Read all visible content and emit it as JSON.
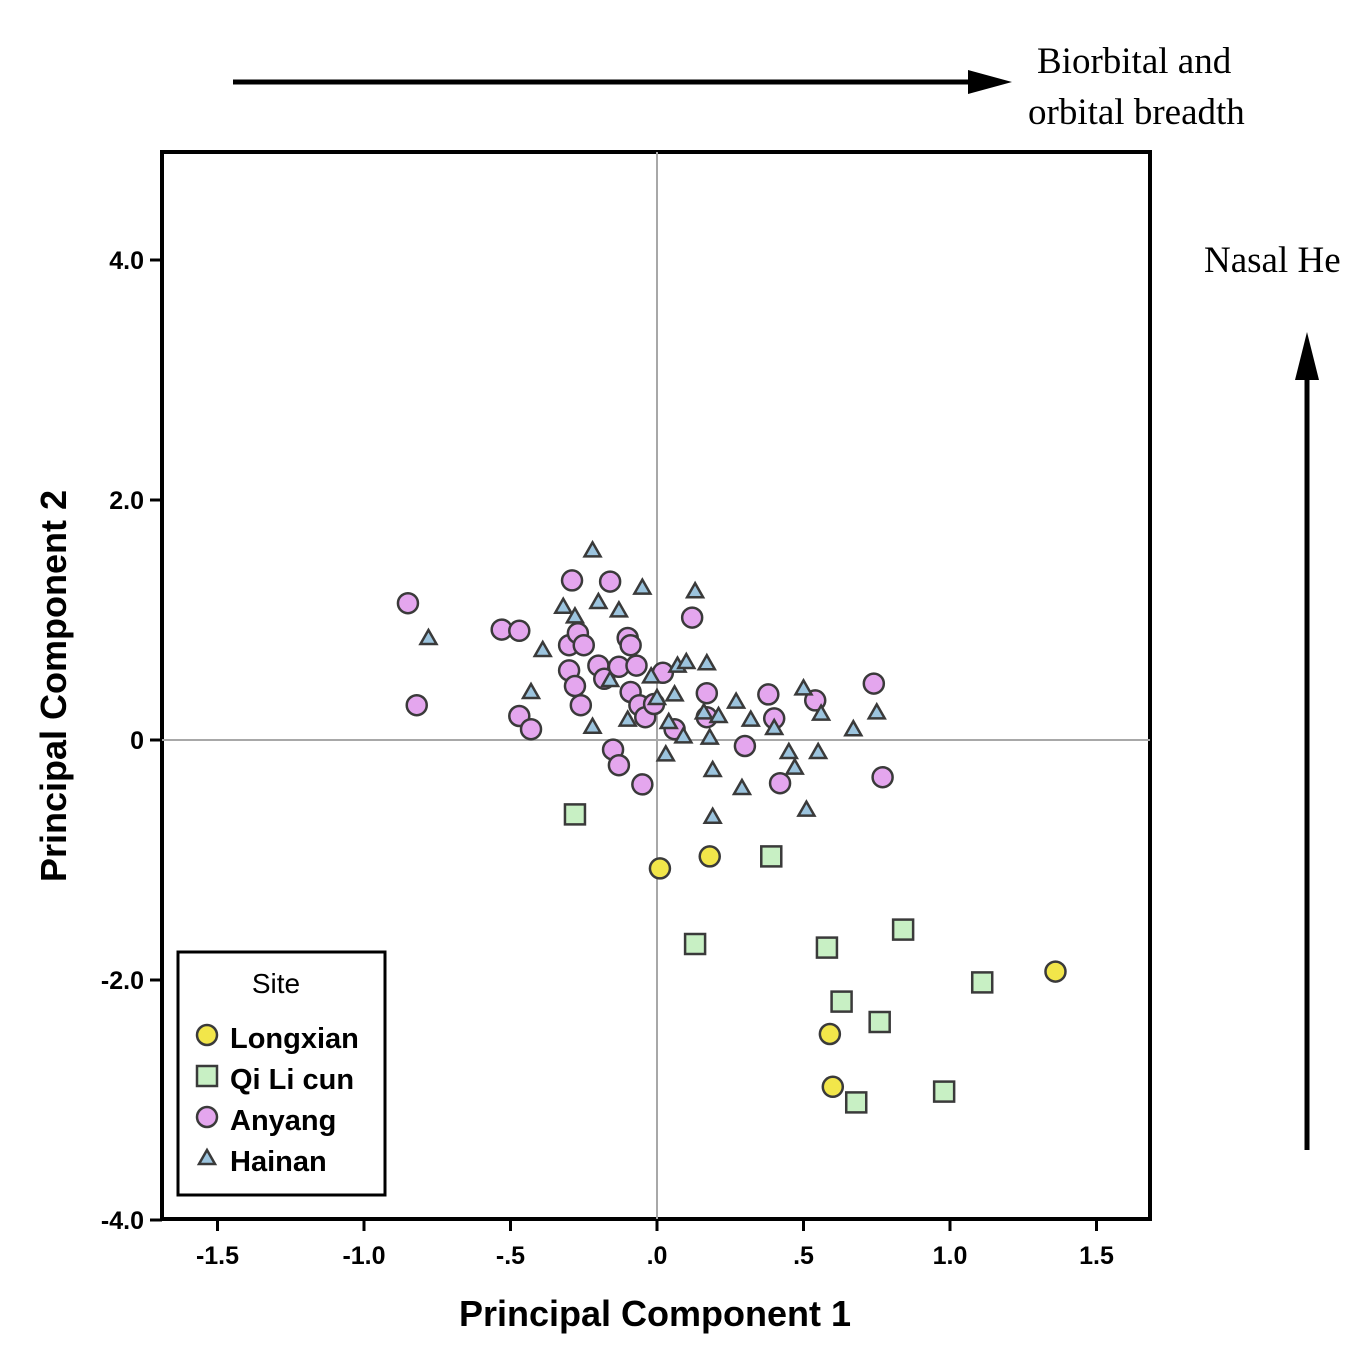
{
  "chart_data": {
    "type": "scatter",
    "xlabel": "Principal Component 1",
    "ylabel": "Principal Component 2",
    "xlim": [
      -1.68,
      1.68
    ],
    "ylim": [
      -4.0,
      4.9
    ],
    "x_ticks": [
      {
        "value": -1.5,
        "label": "-1.5"
      },
      {
        "value": -1.0,
        "label": "-1.0"
      },
      {
        "value": -0.5,
        "label": "-.5"
      },
      {
        "value": 0.0,
        "label": ".0"
      },
      {
        "value": 0.5,
        "label": ".5"
      },
      {
        "value": 1.0,
        "label": "1.0"
      },
      {
        "value": 1.5,
        "label": "1.5"
      }
    ],
    "y_ticks": [
      {
        "value": 4.0,
        "label": "4.0"
      },
      {
        "value": 2.0,
        "label": "2.0"
      },
      {
        "value": 0.0,
        "label": "0"
      },
      {
        "value": -2.0,
        "label": "-2.0"
      },
      {
        "value": -4.0,
        "label": "-4.0"
      }
    ],
    "reference_lines": {
      "x": 0,
      "y": 0
    },
    "annotations": {
      "top_text_line1": "Biorbital and",
      "top_text_line2": "orbital breadth",
      "right_text": "Nasal He"
    },
    "legend": {
      "title": "Site",
      "position": "bottom-left"
    },
    "series": [
      {
        "name": "Longxian",
        "marker": "circle",
        "color": "#f2e64a",
        "points": [
          [
            0.01,
            -1.07
          ],
          [
            0.18,
            -0.97
          ],
          [
            0.59,
            -2.45
          ],
          [
            0.6,
            -2.89
          ],
          [
            1.36,
            -1.93
          ]
        ]
      },
      {
        "name": "Qi Li cun",
        "marker": "square",
        "color": "#c8f0c4",
        "points": [
          [
            -0.28,
            -0.62
          ],
          [
            0.13,
            -1.7
          ],
          [
            0.39,
            -0.97
          ],
          [
            0.58,
            -1.73
          ],
          [
            0.63,
            -2.18
          ],
          [
            0.76,
            -2.35
          ],
          [
            0.84,
            -1.58
          ],
          [
            1.11,
            -2.02
          ],
          [
            0.68,
            -3.02
          ],
          [
            0.98,
            -2.93
          ]
        ]
      },
      {
        "name": "Anyang",
        "marker": "circle",
        "color": "#e4a6ee",
        "points": [
          [
            -0.85,
            1.14
          ],
          [
            -0.82,
            0.29
          ],
          [
            -0.53,
            0.92
          ],
          [
            -0.47,
            0.91
          ],
          [
            -0.47,
            0.2
          ],
          [
            -0.43,
            0.09
          ],
          [
            -0.29,
            1.33
          ],
          [
            -0.3,
            0.79
          ],
          [
            -0.3,
            0.58
          ],
          [
            -0.28,
            0.45
          ],
          [
            -0.27,
            0.89
          ],
          [
            -0.25,
            0.79
          ],
          [
            -0.26,
            0.29
          ],
          [
            -0.2,
            0.62
          ],
          [
            -0.18,
            0.51
          ],
          [
            -0.16,
            1.32
          ],
          [
            -0.15,
            -0.08
          ],
          [
            -0.13,
            -0.21
          ],
          [
            -0.13,
            0.61
          ],
          [
            -0.1,
            0.85
          ],
          [
            -0.09,
            0.79
          ],
          [
            -0.09,
            0.4
          ],
          [
            -0.07,
            0.62
          ],
          [
            -0.06,
            0.29
          ],
          [
            -0.05,
            -0.37
          ],
          [
            -0.04,
            0.19
          ],
          [
            -0.01,
            0.3
          ],
          [
            0.02,
            0.56
          ],
          [
            0.12,
            1.02
          ],
          [
            0.17,
            0.39
          ],
          [
            0.17,
            0.19
          ],
          [
            0.3,
            -0.05
          ],
          [
            0.38,
            0.38
          ],
          [
            0.4,
            0.18
          ],
          [
            0.42,
            -0.36
          ],
          [
            0.54,
            0.33
          ],
          [
            0.74,
            0.47
          ],
          [
            0.77,
            -0.31
          ],
          [
            0.06,
            0.09
          ]
        ]
      },
      {
        "name": "Hainan",
        "marker": "triangle",
        "color": "#9cc4de",
        "points": [
          [
            -0.78,
            0.85
          ],
          [
            -0.43,
            0.4
          ],
          [
            -0.39,
            0.75
          ],
          [
            -0.32,
            1.11
          ],
          [
            -0.28,
            1.03
          ],
          [
            -0.22,
            1.58
          ],
          [
            -0.2,
            1.15
          ],
          [
            -0.22,
            0.11
          ],
          [
            -0.16,
            0.5
          ],
          [
            -0.13,
            1.08
          ],
          [
            -0.05,
            1.27
          ],
          [
            -0.02,
            0.53
          ],
          [
            0.0,
            0.35
          ],
          [
            0.03,
            -0.12
          ],
          [
            0.06,
            0.38
          ],
          [
            0.07,
            0.62
          ],
          [
            0.1,
            0.65
          ],
          [
            0.13,
            1.24
          ],
          [
            0.16,
            0.23
          ],
          [
            0.17,
            0.64
          ],
          [
            0.18,
            0.02
          ],
          [
            0.19,
            -0.25
          ],
          [
            0.19,
            -0.64
          ],
          [
            0.21,
            0.2
          ],
          [
            0.27,
            0.32
          ],
          [
            0.29,
            -0.4
          ],
          [
            0.32,
            0.17
          ],
          [
            0.4,
            0.1
          ],
          [
            0.45,
            -0.1
          ],
          [
            0.47,
            -0.23
          ],
          [
            0.5,
            0.43
          ],
          [
            0.51,
            -0.58
          ],
          [
            0.55,
            -0.1
          ],
          [
            0.56,
            0.22
          ],
          [
            0.67,
            0.09
          ],
          [
            0.75,
            0.23
          ],
          [
            0.09,
            0.03
          ],
          [
            0.04,
            0.15
          ],
          [
            -0.1,
            0.17
          ]
        ]
      }
    ]
  }
}
